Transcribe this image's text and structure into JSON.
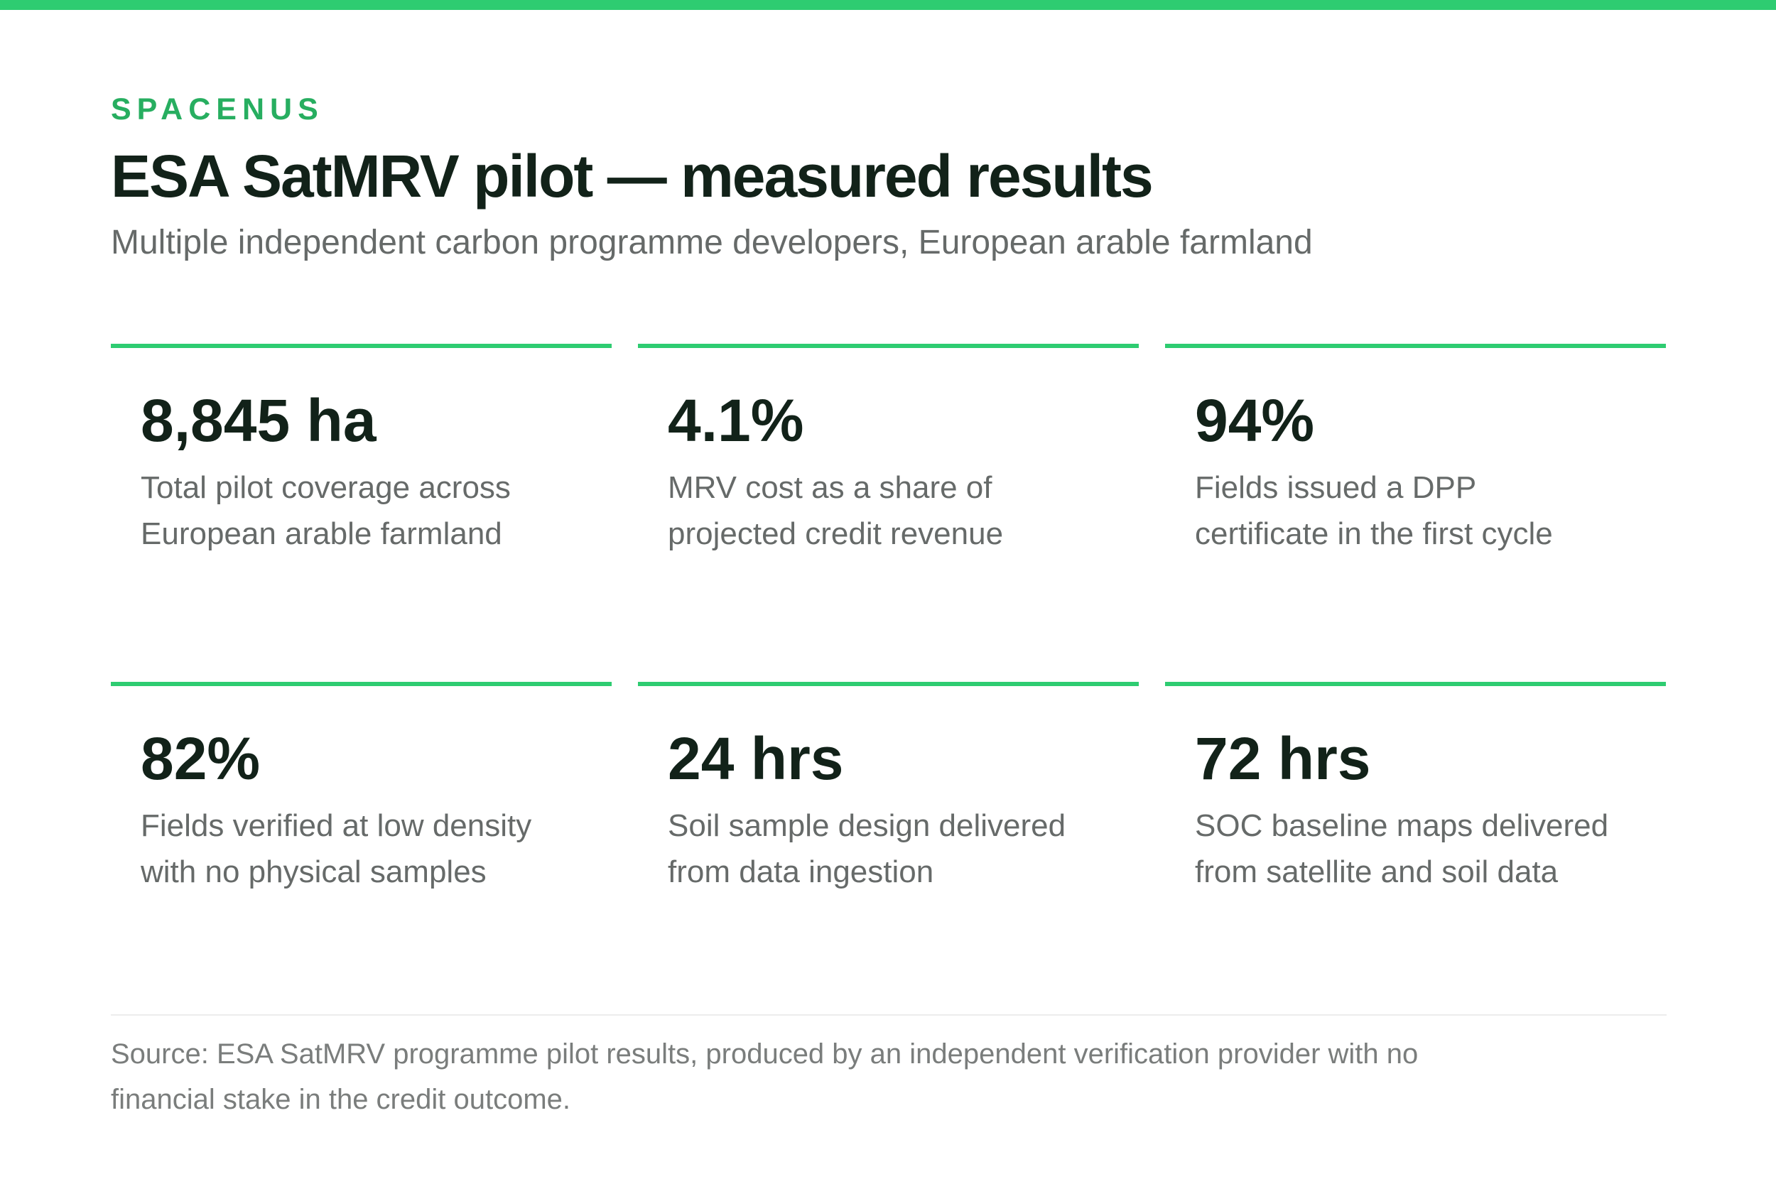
{
  "brand": "SPACENUS",
  "title": "ESA SatMRV pilot — measured results",
  "subtitle": "Multiple independent carbon programme developers, European arable farmland",
  "stats": [
    {
      "value": "8,845 ha",
      "desc_line1": "Total pilot coverage across",
      "desc_line2": "European arable farmland"
    },
    {
      "value": "4.1%",
      "desc_line1": "MRV cost as a share of",
      "desc_line2": "projected credit revenue"
    },
    {
      "value": "94%",
      "desc_line1": "Fields issued a DPP",
      "desc_line2": "certificate in the first cycle"
    },
    {
      "value": "82%",
      "desc_line1": "Fields verified at low density",
      "desc_line2": "with no physical samples"
    },
    {
      "value": "24 hrs",
      "desc_line1": "Soil sample design delivered",
      "desc_line2": "from data ingestion"
    },
    {
      "value": "72 hrs",
      "desc_line1": "SOC baseline maps delivered",
      "desc_line2": "from satellite and soil data"
    }
  ],
  "source": {
    "line1": "Source: ESA SatMRV programme pilot results, produced by an independent verification provider with no",
    "line2": "financial stake in the credit outcome."
  },
  "colors": {
    "accent": "#2ecc71",
    "brand": "#27ae60",
    "heading": "#122219",
    "body_text": "#666a69"
  }
}
